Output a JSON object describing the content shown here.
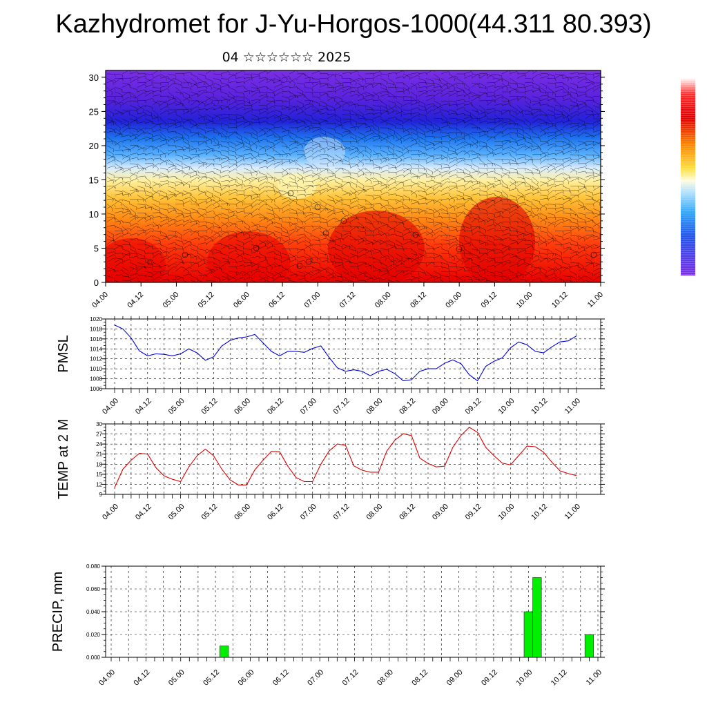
{
  "title": "Kazhydromet for J-Yu-Horgos-1000(44.311 80.393)",
  "subtitle": "04 ☆☆☆☆☆☆ 2025",
  "time_ticks": [
    "04.00",
    "04.12",
    "05.00",
    "05.12",
    "06.00",
    "06.12",
    "07.00",
    "07.12",
    "08.00",
    "08.12",
    "09.00",
    "09.12",
    "10.00",
    "10.12",
    "11.00"
  ],
  "colors": {
    "pmsl_line": "#0000dd",
    "temp_line": "#dd0000",
    "precip_bar": "#00ee00",
    "frame": "#000000"
  },
  "chart_data": [
    {
      "type": "heatmap",
      "title": "",
      "ylabel": "",
      "y_ticks": [
        "0",
        "5",
        "10",
        "15",
        "20",
        "25",
        "30"
      ],
      "ylim": [
        0,
        31
      ],
      "x": [
        "04.00",
        "04.12",
        "05.00",
        "05.12",
        "06.00",
        "06.12",
        "07.00",
        "07.12",
        "08.00",
        "08.12",
        "09.00",
        "09.12",
        "10.00",
        "10.12",
        "11.00"
      ],
      "has_wind_barbs": true,
      "colorbar": "blue-purple (top) to white, yellow, orange and red (bottom)"
    },
    {
      "type": "line",
      "ylabel": "PMSL",
      "ylim": [
        1006,
        1020
      ],
      "y_ticks": [
        "1006",
        "1008",
        "1010",
        "1012",
        "1014",
        "1016",
        "1018",
        "1020"
      ],
      "x_step_hours": 3,
      "series": [
        {
          "values": [
            1018.8,
            1018.0,
            1016.2,
            1013.6,
            1012.6,
            1013.0,
            1012.9,
            1012.6,
            1013.0,
            1014.0,
            1013.2,
            1011.7,
            1012.4,
            1014.6,
            1015.7,
            1016.2,
            1016.4,
            1016.9,
            1015.2,
            1013.5,
            1012.6,
            1013.5,
            1013.5,
            1013.3,
            1014.1,
            1014.6,
            1012.3,
            1010.2,
            1009.5,
            1009.8,
            1009.5,
            1008.6,
            1009.5,
            1009.9,
            1009.0,
            1007.6,
            1007.8,
            1009.5,
            1010.0,
            1010.0,
            1011.1,
            1011.8,
            1011.0,
            1008.8,
            1007.6,
            1010.5,
            1011.5,
            1012.2,
            1014.2,
            1015.4,
            1014.8,
            1013.5,
            1013.2,
            1014.4,
            1015.4,
            1015.6,
            1016.6
          ]
        }
      ]
    },
    {
      "type": "line",
      "ylabel": "TEMP at 2 M",
      "ylim": [
        9,
        30
      ],
      "y_ticks": [
        "9",
        "12",
        "15",
        "18",
        "21",
        "24",
        "27",
        "30"
      ],
      "x_step_hours": 3,
      "series": [
        {
          "values": [
            11.0,
            16.5,
            19.2,
            21.2,
            21.0,
            17.0,
            14.5,
            13.5,
            12.8,
            17.2,
            20.5,
            22.5,
            20.5,
            16.5,
            13.3,
            11.8,
            11.8,
            16.3,
            19.2,
            21.8,
            21.7,
            17.4,
            14.0,
            12.8,
            12.8,
            18.0,
            21.9,
            24.0,
            23.6,
            17.5,
            16.2,
            15.6,
            15.6,
            21.9,
            25.2,
            27.1,
            26.5,
            19.8,
            18.2,
            17.2,
            17.4,
            23.0,
            26.6,
            29.0,
            27.5,
            23.0,
            20.5,
            18.3,
            17.8,
            20.6,
            23.4,
            23.2,
            21.6,
            18.6,
            16.0,
            15.2,
            14.6
          ]
        }
      ]
    },
    {
      "type": "bar",
      "ylabel": "PRECIP, mm",
      "ylim": [
        0,
        0.08
      ],
      "y_ticks": [
        "0.000",
        "0.020",
        "0.040",
        "0.060",
        "0.080"
      ],
      "bars": [
        {
          "t": "05.15",
          "value": 0.01
        },
        {
          "t": "10.00",
          "value": 0.04
        },
        {
          "t": "10.03",
          "value": 0.07
        },
        {
          "t": "10.21",
          "value": 0.02
        }
      ]
    }
  ]
}
